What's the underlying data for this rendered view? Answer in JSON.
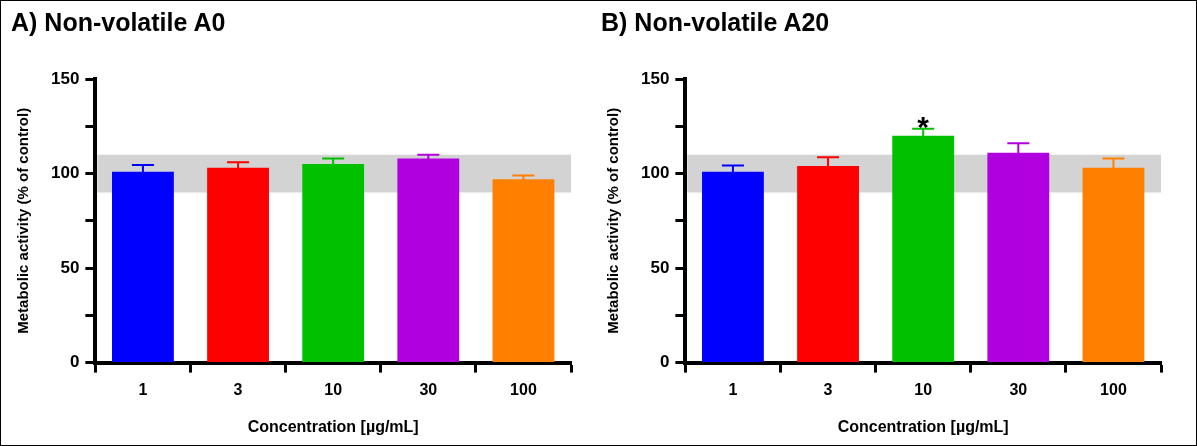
{
  "chart_data": [
    {
      "type": "bar",
      "title": "A) Non-volatile A0",
      "xlabel": "Concentration [µg/mL]",
      "ylabel": "Metabolic activity (% of control)",
      "categories": [
        "1",
        "3",
        "10",
        "30",
        "100"
      ],
      "values": [
        101,
        103,
        105,
        108,
        97
      ],
      "colors": [
        "#0000ff",
        "#ff0000",
        "#00c000",
        "#b000e0",
        "#ff8000"
      ],
      "errors": [
        3.5,
        3,
        3,
        2,
        2
      ],
      "ylim": [
        0,
        150
      ],
      "yticks": [
        0,
        {
          "value": 25,
          "label": null
        },
        50,
        {
          "value": 75,
          "label": null
        },
        100,
        {
          "value": 125,
          "label": null
        },
        150
      ],
      "bands": [
        {
          "axis": "y",
          "from": 90,
          "to": 110,
          "color": "#d3d3d3"
        }
      ]
    },
    {
      "type": "bar",
      "title": "B) Non-volatile A20",
      "xlabel": "Concentration [µg/mL]",
      "ylabel": "Metabolic activity (% of control)",
      "categories": [
        "1",
        "3",
        "10",
        "30",
        "100"
      ],
      "values": [
        101,
        104,
        120,
        111,
        103
      ],
      "colors": [
        "#0000ff",
        "#ff0000",
        "#00c000",
        "#b000e0",
        "#ff8000"
      ],
      "errors": [
        3.3,
        4.6,
        3.7,
        5,
        5
      ],
      "ylim": [
        0,
        150
      ],
      "yticks": [
        0,
        {
          "value": 25,
          "label": null
        },
        50,
        {
          "value": 75,
          "label": null
        },
        100,
        {
          "value": 125,
          "label": null
        },
        150
      ],
      "bands": [
        {
          "axis": "y",
          "from": 90,
          "to": 110,
          "color": "#d3d3d3"
        }
      ],
      "annotations": [
        "*"
      ]
    }
  ]
}
